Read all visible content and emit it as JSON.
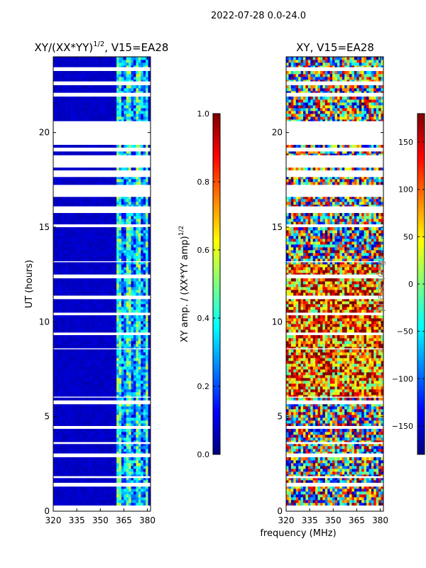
{
  "suptitle": "2022-07-28 0.0-24.0",
  "colors": {
    "jet": [
      "#00007f",
      "#0000ff",
      "#007fff",
      "#00ffff",
      "#7fff7f",
      "#ffff00",
      "#ff7f00",
      "#ff0000",
      "#7f0000"
    ],
    "background": "#ffffff",
    "frame": "#000000"
  },
  "chart_data": [
    {
      "type": "heatmap",
      "title_main": "XY/(XX*YY)",
      "title_sup": "1/2",
      "title_rest": ", V15=EA28",
      "xlabel": "",
      "ylabel": "UT (hours)",
      "xlim": [
        320,
        382
      ],
      "ylim": [
        0,
        24
      ],
      "xticks": [
        "320",
        "335",
        "350",
        "365",
        "380"
      ],
      "xtick_values": [
        320,
        335,
        350,
        365,
        380
      ],
      "yticks": [
        "0",
        "5",
        "10",
        "15",
        "20"
      ],
      "ytick_values": [
        0,
        5,
        10,
        15,
        20
      ],
      "colorbar": {
        "label_main": "XY amp. / (XX*YY amp)",
        "label_sup": "1/2",
        "range": [
          0.0,
          1.0
        ],
        "ticks": [
          "0.0",
          "0.2",
          "0.4",
          "0.6",
          "0.8",
          "1.0"
        ],
        "tick_values": [
          0.0,
          0.2,
          0.4,
          0.6,
          0.8,
          1.0
        ]
      },
      "description": "Normalized XY amplitude vs frequency and UT; mostly low (~0.05) with elevated values (0.2-0.6) near 361-380 MHz; blank bands are flagged data.",
      "value_model": {
        "base": 0.05,
        "hot_band_mhz": [
          361,
          380
        ],
        "hot_level": 0.35
      }
    },
    {
      "type": "heatmap",
      "title": "XY, V15=EA28",
      "xlabel": "frequency (MHz)",
      "ylabel": "",
      "xlim": [
        320,
        382
      ],
      "ylim": [
        0,
        24
      ],
      "xticks": [
        "320",
        "335",
        "350",
        "365",
        "380"
      ],
      "xtick_values": [
        320,
        335,
        350,
        365,
        380
      ],
      "yticks": [
        "0",
        "5",
        "10",
        "15",
        "20"
      ],
      "ytick_values": [
        0,
        5,
        10,
        15,
        20
      ],
      "colorbar": {
        "label": "phase (deg)",
        "range": [
          -180,
          180
        ],
        "ticks": [
          "150",
          "100",
          "50",
          "0",
          "−50",
          "−100",
          "−150"
        ],
        "tick_values": [
          150,
          100,
          50,
          0,
          -50,
          -100,
          -150
        ]
      },
      "description": "XY phase vs frequency and UT; values span -180 to 180 deg with warm (~+100) dominance at 6-13 h.",
      "value_model": {
        "base_deg": 0,
        "warm_hours": [
          6,
          13
        ],
        "warm_deg": 100
      }
    }
  ],
  "flagged_ut_ranges": [
    [
      0.0,
      0.3
    ],
    [
      1.3,
      1.5
    ],
    [
      1.75,
      1.85
    ],
    [
      2.9,
      3.05
    ],
    [
      3.55,
      3.65
    ],
    [
      4.35,
      4.5
    ],
    [
      5.65,
      5.85
    ],
    [
      6.0,
      6.05
    ],
    [
      8.55,
      8.6
    ],
    [
      9.3,
      9.4
    ],
    [
      10.4,
      10.45
    ],
    [
      11.2,
      11.35
    ],
    [
      12.3,
      12.5
    ],
    [
      13.15,
      13.2
    ],
    [
      15.0,
      15.15
    ],
    [
      15.8,
      16.1
    ],
    [
      16.6,
      17.2
    ],
    [
      17.65,
      18.0
    ],
    [
      18.2,
      18.8
    ],
    [
      19.0,
      19.2
    ],
    [
      19.4,
      20.6
    ],
    [
      21.9,
      22.1
    ],
    [
      22.55,
      22.7
    ],
    [
      23.3,
      23.45
    ]
  ]
}
